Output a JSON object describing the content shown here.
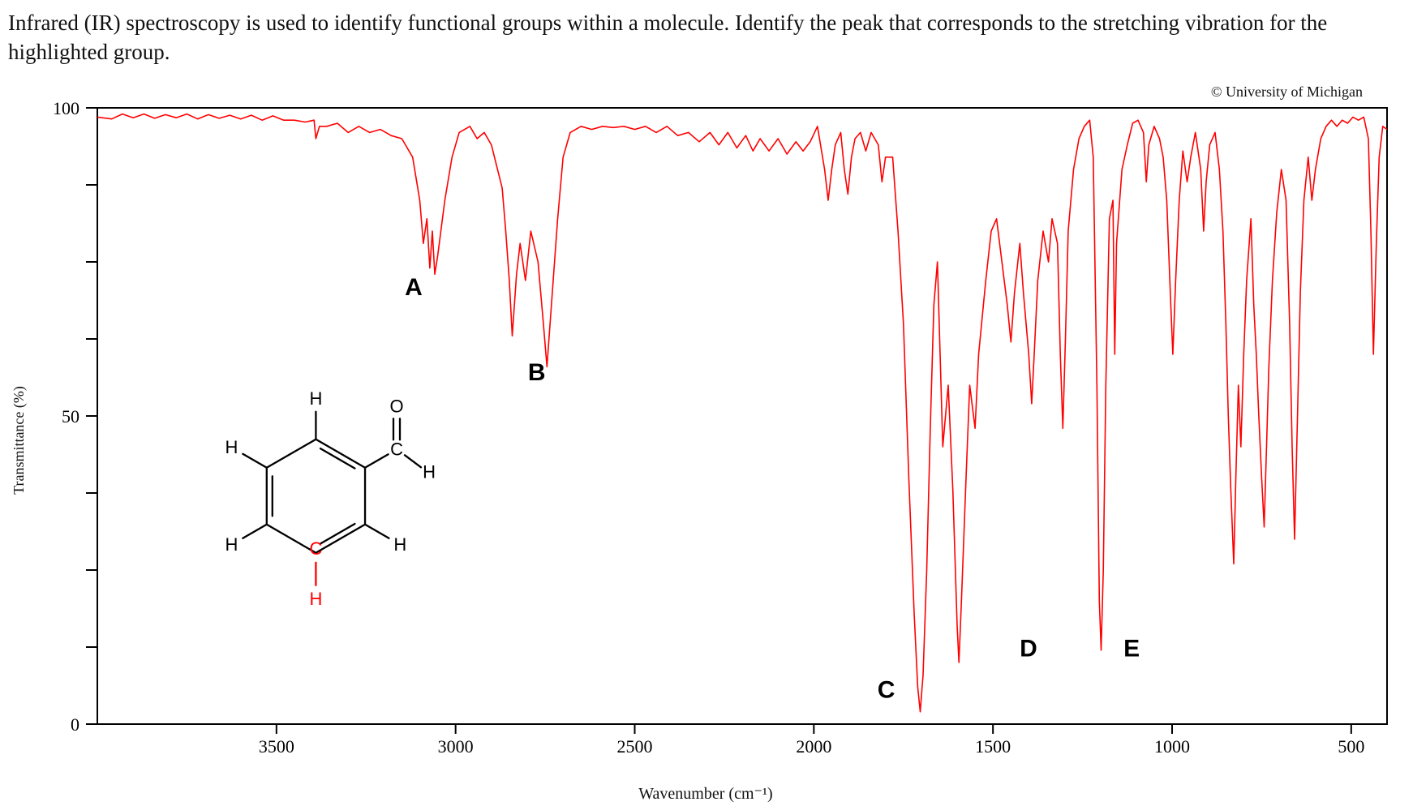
{
  "question": {
    "text": "Infrared (IR) spectroscopy is used to identify functional groups within a molecule. Identify the peak that corresponds to the stretching vibration for the highlighted group."
  },
  "copyright": "© University of Michigan",
  "chart": {
    "type": "line",
    "line_color": "#ff0000",
    "line_width": 1.6,
    "background_color": "#ffffff",
    "axis_color": "#000000",
    "ylabel": "Transmittance (%)",
    "xlabel": "Wavenumber (cm⁻¹)",
    "xlim": [
      4000,
      400
    ],
    "ylim": [
      0,
      100
    ],
    "yticks": [
      0,
      50,
      100
    ],
    "yticks_minor": [
      12.5,
      25,
      37.5,
      62.5,
      75,
      87.5
    ],
    "xticks": [
      3500,
      3000,
      2500,
      2000,
      1500,
      1000,
      500
    ],
    "tick_fontsize": 22,
    "label_fontsize": 18,
    "peak_label_fontsize": 30,
    "spectrum": [
      [
        4000,
        98.5
      ],
      [
        3960,
        98.2
      ],
      [
        3930,
        99.0
      ],
      [
        3900,
        98.4
      ],
      [
        3870,
        99.0
      ],
      [
        3840,
        98.3
      ],
      [
        3810,
        98.9
      ],
      [
        3780,
        98.4
      ],
      [
        3750,
        99.0
      ],
      [
        3720,
        98.2
      ],
      [
        3690,
        98.9
      ],
      [
        3660,
        98.3
      ],
      [
        3630,
        98.8
      ],
      [
        3600,
        98.2
      ],
      [
        3570,
        98.8
      ],
      [
        3540,
        98.0
      ],
      [
        3510,
        98.7
      ],
      [
        3480,
        98.0
      ],
      [
        3450,
        98.0
      ],
      [
        3420,
        97.7
      ],
      [
        3395,
        98.0
      ],
      [
        3390,
        95.0
      ],
      [
        3380,
        97.0
      ],
      [
        3360,
        97.0
      ],
      [
        3330,
        97.5
      ],
      [
        3300,
        96.0
      ],
      [
        3270,
        97.0
      ],
      [
        3240,
        96.0
      ],
      [
        3210,
        96.5
      ],
      [
        3180,
        95.5
      ],
      [
        3150,
        95.0
      ],
      [
        3120,
        92.0
      ],
      [
        3100,
        85.0
      ],
      [
        3090,
        78.0
      ],
      [
        3080,
        82.0
      ],
      [
        3072,
        74.0
      ],
      [
        3065,
        80.0
      ],
      [
        3058,
        73.0
      ],
      [
        3050,
        76.0
      ],
      [
        3030,
        85.0
      ],
      [
        3010,
        92.0
      ],
      [
        2990,
        96.0
      ],
      [
        2960,
        97.0
      ],
      [
        2940,
        95.0
      ],
      [
        2920,
        96.0
      ],
      [
        2900,
        94.0
      ],
      [
        2870,
        87.0
      ],
      [
        2860,
        80.0
      ],
      [
        2850,
        72.0
      ],
      [
        2842,
        63.0
      ],
      [
        2830,
        73.0
      ],
      [
        2820,
        78.0
      ],
      [
        2805,
        72.0
      ],
      [
        2790,
        80.0
      ],
      [
        2770,
        75.0
      ],
      [
        2755,
        65.0
      ],
      [
        2745,
        58.0
      ],
      [
        2730,
        70.0
      ],
      [
        2715,
        82.0
      ],
      [
        2700,
        92.0
      ],
      [
        2680,
        96.0
      ],
      [
        2650,
        97.0
      ],
      [
        2620,
        96.5
      ],
      [
        2590,
        97.0
      ],
      [
        2560,
        96.8
      ],
      [
        2530,
        97.0
      ],
      [
        2500,
        96.5
      ],
      [
        2470,
        97.0
      ],
      [
        2440,
        96.0
      ],
      [
        2410,
        97.0
      ],
      [
        2380,
        95.5
      ],
      [
        2350,
        96.0
      ],
      [
        2320,
        94.5
      ],
      [
        2290,
        96.0
      ],
      [
        2265,
        94.0
      ],
      [
        2240,
        96.0
      ],
      [
        2215,
        93.5
      ],
      [
        2190,
        95.5
      ],
      [
        2170,
        93.0
      ],
      [
        2150,
        95.0
      ],
      [
        2125,
        93.0
      ],
      [
        2100,
        95.0
      ],
      [
        2075,
        92.5
      ],
      [
        2050,
        94.5
      ],
      [
        2030,
        93.0
      ],
      [
        2010,
        94.5
      ],
      [
        1990,
        97.0
      ],
      [
        1970,
        90.0
      ],
      [
        1960,
        85.0
      ],
      [
        1950,
        90.0
      ],
      [
        1940,
        94.0
      ],
      [
        1925,
        96.0
      ],
      [
        1915,
        90.0
      ],
      [
        1905,
        86.0
      ],
      [
        1895,
        92.0
      ],
      [
        1885,
        95.0
      ],
      [
        1870,
        96.0
      ],
      [
        1855,
        93.0
      ],
      [
        1840,
        96.0
      ],
      [
        1820,
        94.0
      ],
      [
        1810,
        88.0
      ],
      [
        1800,
        92.0
      ],
      [
        1780,
        92.0
      ],
      [
        1765,
        80.0
      ],
      [
        1750,
        65.0
      ],
      [
        1735,
        40.0
      ],
      [
        1720,
        18.0
      ],
      [
        1710,
        6.0
      ],
      [
        1703,
        2.0
      ],
      [
        1695,
        8.0
      ],
      [
        1685,
        25.0
      ],
      [
        1675,
        48.0
      ],
      [
        1665,
        68.0
      ],
      [
        1655,
        75.0
      ],
      [
        1640,
        45.0
      ],
      [
        1625,
        55.0
      ],
      [
        1612,
        38.0
      ],
      [
        1600,
        16.0
      ],
      [
        1595,
        10.0
      ],
      [
        1588,
        20.0
      ],
      [
        1575,
        40.0
      ],
      [
        1565,
        55.0
      ],
      [
        1550,
        48.0
      ],
      [
        1540,
        60.0
      ],
      [
        1520,
        72.0
      ],
      [
        1505,
        80.0
      ],
      [
        1490,
        82.0
      ],
      [
        1475,
        75.0
      ],
      [
        1460,
        68.0
      ],
      [
        1450,
        62.0
      ],
      [
        1440,
        70.0
      ],
      [
        1425,
        78.0
      ],
      [
        1415,
        70.0
      ],
      [
        1400,
        60.0
      ],
      [
        1392,
        52.0
      ],
      [
        1385,
        60.0
      ],
      [
        1375,
        72.0
      ],
      [
        1360,
        80.0
      ],
      [
        1345,
        75.0
      ],
      [
        1335,
        82.0
      ],
      [
        1320,
        78.0
      ],
      [
        1312,
        60.0
      ],
      [
        1305,
        48.0
      ],
      [
        1298,
        62.0
      ],
      [
        1290,
        80.0
      ],
      [
        1275,
        90.0
      ],
      [
        1260,
        95.0
      ],
      [
        1245,
        97.0
      ],
      [
        1230,
        98.0
      ],
      [
        1220,
        92.0
      ],
      [
        1210,
        55.0
      ],
      [
        1203,
        20.0
      ],
      [
        1198,
        12.0
      ],
      [
        1192,
        25.0
      ],
      [
        1185,
        55.0
      ],
      [
        1175,
        82.0
      ],
      [
        1165,
        85.0
      ],
      [
        1160,
        60.0
      ],
      [
        1155,
        78.0
      ],
      [
        1140,
        90.0
      ],
      [
        1125,
        94.0
      ],
      [
        1110,
        97.5
      ],
      [
        1095,
        98.0
      ],
      [
        1080,
        96.0
      ],
      [
        1072,
        88.0
      ],
      [
        1065,
        94.0
      ],
      [
        1050,
        97.0
      ],
      [
        1035,
        95.0
      ],
      [
        1025,
        92.0
      ],
      [
        1015,
        85.0
      ],
      [
        1005,
        70.0
      ],
      [
        998,
        60.0
      ],
      [
        990,
        72.0
      ],
      [
        980,
        85.0
      ],
      [
        970,
        93.0
      ],
      [
        958,
        88.0
      ],
      [
        948,
        92.0
      ],
      [
        935,
        96.0
      ],
      [
        920,
        90.0
      ],
      [
        912,
        80.0
      ],
      [
        905,
        88.0
      ],
      [
        895,
        94.0
      ],
      [
        880,
        96.0
      ],
      [
        868,
        90.0
      ],
      [
        858,
        80.0
      ],
      [
        850,
        65.0
      ],
      [
        843,
        50.0
      ],
      [
        836,
        38.0
      ],
      [
        828,
        26.0
      ],
      [
        822,
        40.0
      ],
      [
        815,
        55.0
      ],
      [
        808,
        45.0
      ],
      [
        800,
        60.0
      ],
      [
        792,
        72.0
      ],
      [
        780,
        82.0
      ],
      [
        772,
        68.0
      ],
      [
        765,
        60.0
      ],
      [
        758,
        50.0
      ],
      [
        750,
        40.0
      ],
      [
        743,
        32.0
      ],
      [
        737,
        44.0
      ],
      [
        730,
        58.0
      ],
      [
        720,
        72.0
      ],
      [
        708,
        83.0
      ],
      [
        695,
        90.0
      ],
      [
        682,
        85.0
      ],
      [
        672,
        65.0
      ],
      [
        665,
        45.0
      ],
      [
        658,
        30.0
      ],
      [
        650,
        50.0
      ],
      [
        642,
        70.0
      ],
      [
        632,
        85.0
      ],
      [
        620,
        92.0
      ],
      [
        610,
        85.0
      ],
      [
        600,
        90.0
      ],
      [
        585,
        95.0
      ],
      [
        570,
        97.0
      ],
      [
        555,
        98.0
      ],
      [
        540,
        97.0
      ],
      [
        525,
        98.0
      ],
      [
        510,
        97.5
      ],
      [
        495,
        98.5
      ],
      [
        480,
        98.0
      ],
      [
        465,
        98.5
      ],
      [
        452,
        95.0
      ],
      [
        445,
        80.0
      ],
      [
        438,
        60.0
      ],
      [
        430,
        78.0
      ],
      [
        422,
        92.0
      ],
      [
        412,
        97.0
      ],
      [
        400,
        96.5
      ]
    ],
    "peak_labels": [
      {
        "label": "A",
        "x": 3070,
        "y_anchor": 72
      },
      {
        "label": "B",
        "x": 2780,
        "y_anchor": 63
      },
      {
        "label": "C",
        "x": 1710,
        "y_anchor": 4
      },
      {
        "label": "D",
        "x": 1550,
        "y_anchor": 11
      },
      {
        "label": "E",
        "x": 1260,
        "y_anchor": 11
      }
    ]
  },
  "molecule": {
    "ring_color": "#000000",
    "highlight_color": "#ff0000",
    "atom_labels": [
      "H",
      "H",
      "H",
      "H",
      "H",
      "H",
      "O",
      "C",
      "C"
    ],
    "highlighted_group": "aromatic C-H (ring para-C-H, in red)"
  }
}
